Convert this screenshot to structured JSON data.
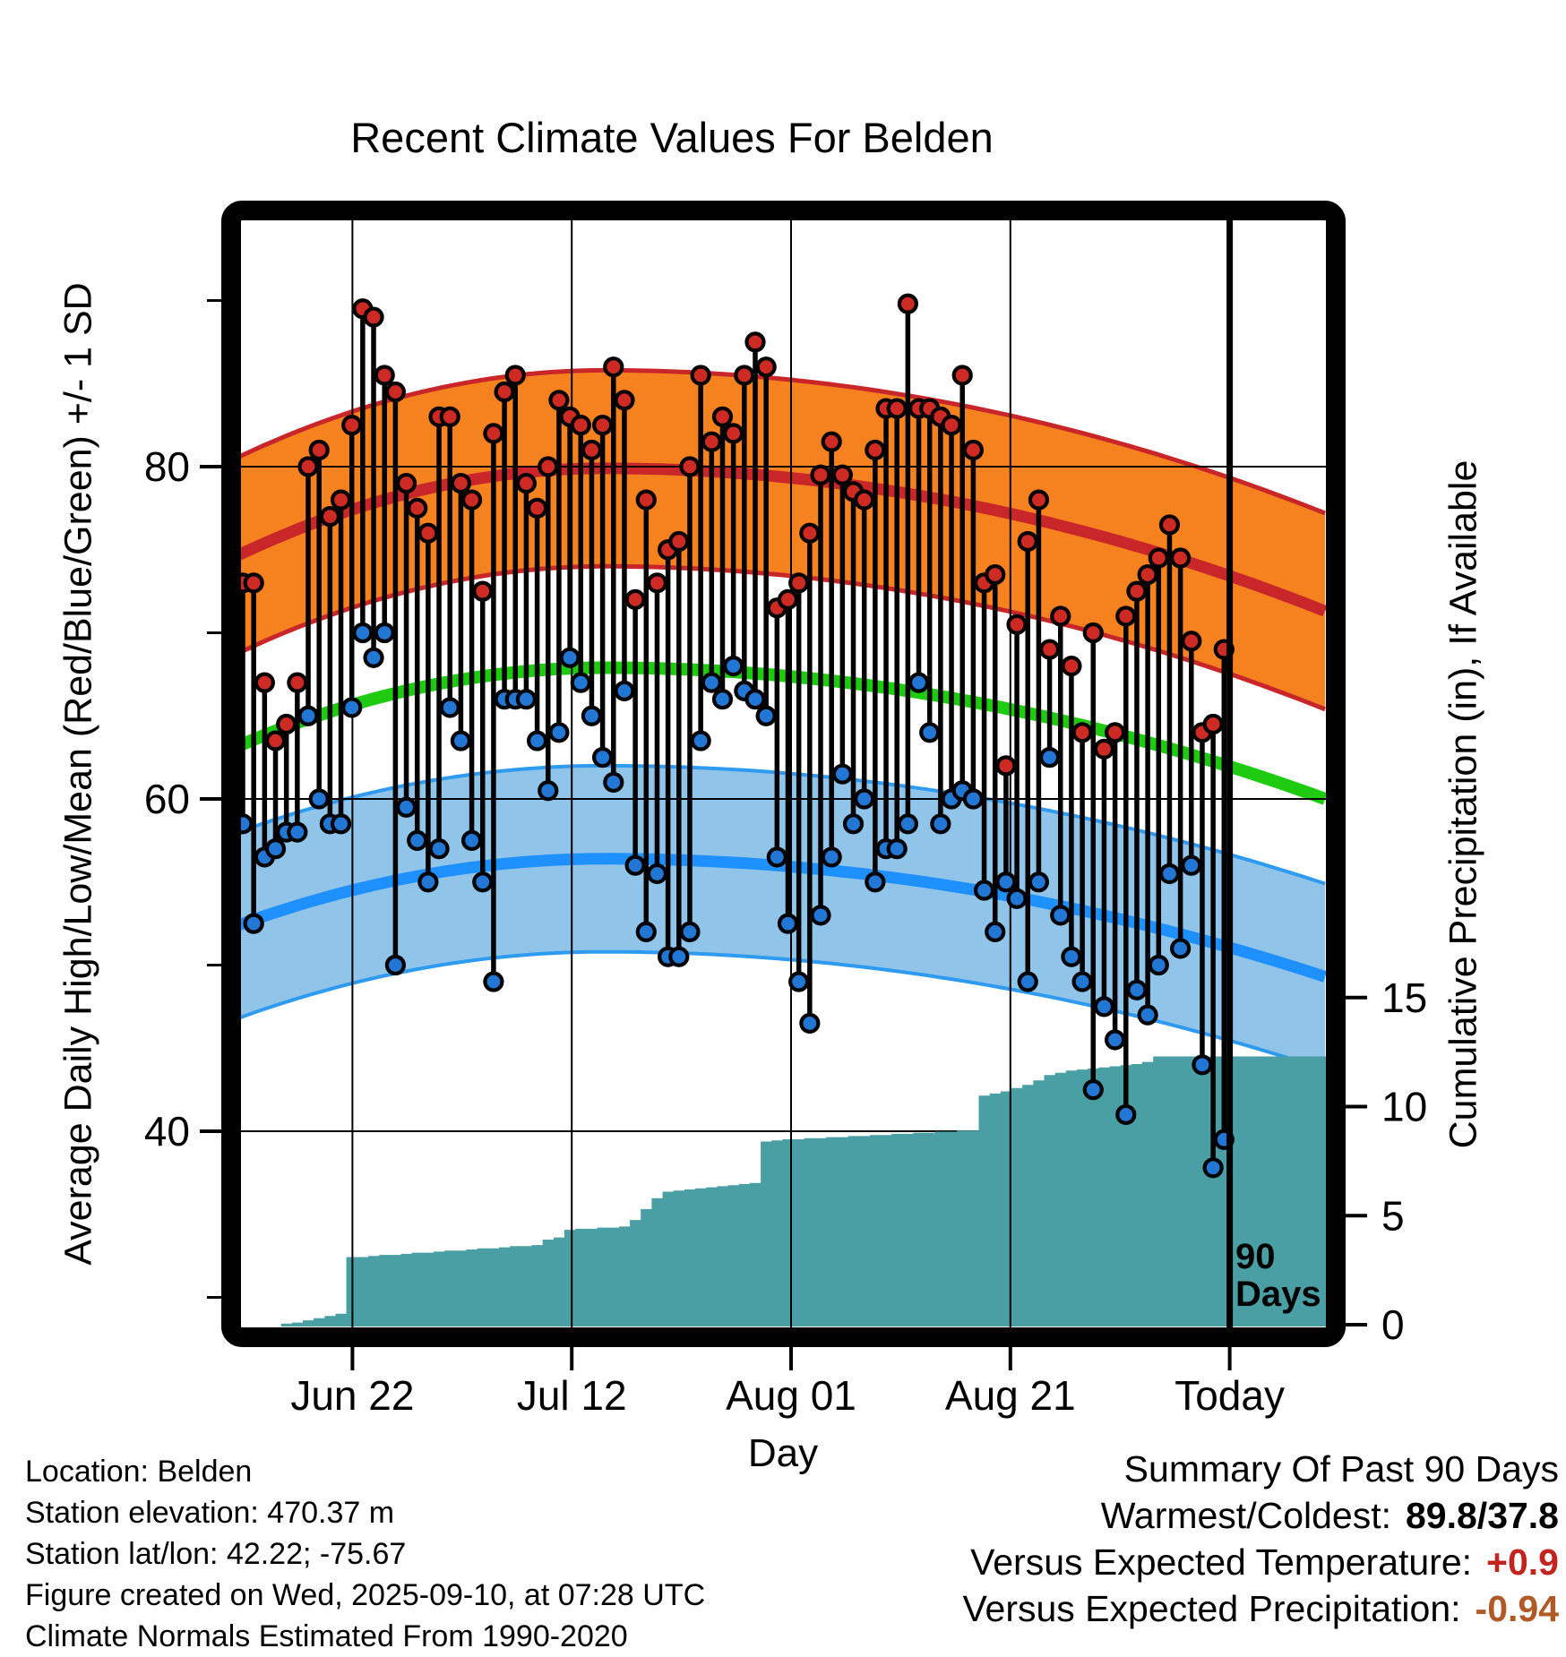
{
  "title": "Recent Climate Values For Belden",
  "axes": {
    "left_label": "Average Daily High/Low/Mean (Red/Blue/Green) +/- 1 SD",
    "right_label": "Cumulative Precipitation (in), If Available",
    "bottom_label": "Day",
    "left_major_ticks": [
      40,
      60,
      80
    ],
    "left_minor_ticks": [
      30,
      50,
      70,
      90
    ],
    "right_major_ticks": [
      0,
      5,
      10,
      15
    ],
    "x_ticks": [
      {
        "label": "Jun 22",
        "day": 10
      },
      {
        "label": "Jul 12",
        "day": 30
      },
      {
        "label": "Aug 01",
        "day": 50
      },
      {
        "label": "Aug 21",
        "day": 70
      },
      {
        "label": "Today",
        "day": 90
      }
    ]
  },
  "annotation": {
    "line1": "90",
    "line2": "Days"
  },
  "footer_left": {
    "line1": "Location: Belden",
    "line2": "Station elevation: 470.37 m",
    "line3": "Station lat/lon: 42.22; -75.67",
    "line4": "Figure created on Wed, 2025-09-10, at 07:28 UTC",
    "line5": "Climate Normals Estimated From 1990-2020"
  },
  "summary": {
    "title": "Summary Of Past 90 Days",
    "rows": [
      {
        "label": "Warmest/Coldest:",
        "value": "89.8/37.8",
        "color": "#000000"
      },
      {
        "label": "Versus Expected Temperature:",
        "value": "+0.9",
        "color": "#c2241f"
      },
      {
        "label": "Versus Expected Precipitation:",
        "value": "-0.94",
        "color": "#b05a28"
      }
    ]
  },
  "colors": {
    "orange_band_fill": "#f5811f",
    "red_line": "#c9262a",
    "green_line": "#1ecb10",
    "blue_band_fill": "#90c4e8",
    "blue_center_line": "#1e90ff",
    "blue_edge_line": "#2e9bf0",
    "precip_fill": "#4a9fa4",
    "stem": "#000000",
    "dot_high": "#cd2a24",
    "dot_low": "#2277d4",
    "grid": "#000000",
    "frame": "#000000"
  },
  "chart_data": {
    "type": "climate-daily-range",
    "description": "Daily high (red dots) and low (blue dots) joined by black stems; seasonal normal bands (high/low mean +/- 1 SD and daily mean); cumulative precipitation step area on right axis.",
    "date_start": "Jun 12",
    "date_today": "Sep 10",
    "n_days": 91,
    "ylim_temperature": [
      28.2,
      94.8
    ],
    "right_axis_visible_ticks": [
      0,
      5,
      10,
      15
    ],
    "today_line_day": 90,
    "high": [
      73,
      73,
      67,
      63.5,
      64.5,
      67,
      80,
      81,
      77,
      78,
      82.5,
      89.5,
      89,
      85.5,
      84.5,
      79,
      77.5,
      76,
      83,
      83,
      79,
      78,
      72.5,
      82,
      84.5,
      85.5,
      79,
      77.5,
      80,
      84,
      83,
      82.5,
      81,
      82.5,
      86,
      84,
      72,
      78,
      73,
      75,
      75.5,
      80,
      85.5,
      81.5,
      83,
      82,
      85.5,
      87.5,
      86,
      71.5,
      72,
      73,
      76,
      79.5,
      81.5,
      79.5,
      78.5,
      78,
      81,
      83.5,
      83.5,
      89.8,
      83.5,
      83.5,
      83,
      82.5,
      85.5,
      81,
      73,
      73.5,
      62,
      70.5,
      75.5,
      78,
      69,
      71,
      68,
      64,
      70,
      63,
      64,
      71,
      72.5,
      73.5,
      74.5,
      76.5,
      74.5,
      69.5,
      64,
      64.5,
      69
    ],
    "low": [
      58.5,
      52.5,
      56.5,
      57,
      58,
      58,
      65,
      60,
      58.5,
      58.5,
      65.5,
      70,
      68.5,
      70,
      50,
      59.5,
      57.5,
      55,
      57,
      65.5,
      63.5,
      57.5,
      55,
      49,
      66,
      66,
      66,
      63.5,
      60.5,
      64,
      68.5,
      67,
      65,
      62.5,
      61,
      66.5,
      56,
      52,
      55.5,
      50.5,
      50.5,
      52,
      63.5,
      67,
      66,
      68,
      66.5,
      66,
      65,
      56.5,
      52.5,
      49,
      46.5,
      53,
      56.5,
      61.5,
      58.5,
      60,
      55,
      57,
      57,
      58.5,
      67,
      64,
      58.5,
      60,
      60.5,
      60,
      54.5,
      52,
      55,
      54,
      49,
      55,
      62.5,
      53,
      50.5,
      49,
      42.5,
      47.5,
      45.5,
      41,
      48.5,
      47,
      50,
      55.5,
      51,
      56,
      44,
      37.8,
      39.5
    ],
    "cumulative_precip": [
      0,
      0,
      0,
      0,
      0.05,
      0.1,
      0.2,
      0.3,
      0.4,
      0.5,
      3.1,
      3.1,
      3.15,
      3.2,
      3.2,
      3.25,
      3.3,
      3.3,
      3.35,
      3.4,
      3.4,
      3.45,
      3.5,
      3.5,
      3.55,
      3.6,
      3.6,
      3.65,
      3.9,
      4.0,
      4.35,
      4.4,
      4.4,
      4.45,
      4.45,
      4.5,
      4.8,
      5.3,
      5.8,
      6.1,
      6.15,
      6.2,
      6.25,
      6.3,
      6.35,
      6.4,
      6.45,
      6.5,
      8.4,
      8.45,
      8.5,
      8.5,
      8.55,
      8.55,
      8.6,
      8.6,
      8.65,
      8.65,
      8.7,
      8.7,
      8.75,
      8.75,
      8.8,
      8.8,
      8.85,
      8.85,
      8.9,
      8.9,
      10.5,
      10.6,
      10.7,
      10.85,
      11.0,
      11.2,
      11.45,
      11.55,
      11.65,
      11.7,
      11.75,
      11.8,
      11.85,
      11.9,
      11.95,
      12.05,
      12.3,
      12.3,
      12.3,
      12.3,
      12.3,
      12.3,
      12.3
    ],
    "normals": {
      "peak_day": 33,
      "x_start_day": -0.35,
      "x_end_day": 98.7,
      "high": {
        "start": 74.8,
        "peak": 79.9,
        "end": 71.3,
        "half_width": 5.9
      },
      "mean": {
        "start": 63.3,
        "peak": 67.9,
        "end": 60.0
      },
      "low": {
        "start": 52.5,
        "peak": 56.4,
        "end": 49.3,
        "half_width": 5.6
      }
    },
    "summary_stats": {
      "warmest": 89.8,
      "coldest": 37.8,
      "vs_expected_temperature": 0.9,
      "vs_expected_precipitation": -0.94
    }
  }
}
